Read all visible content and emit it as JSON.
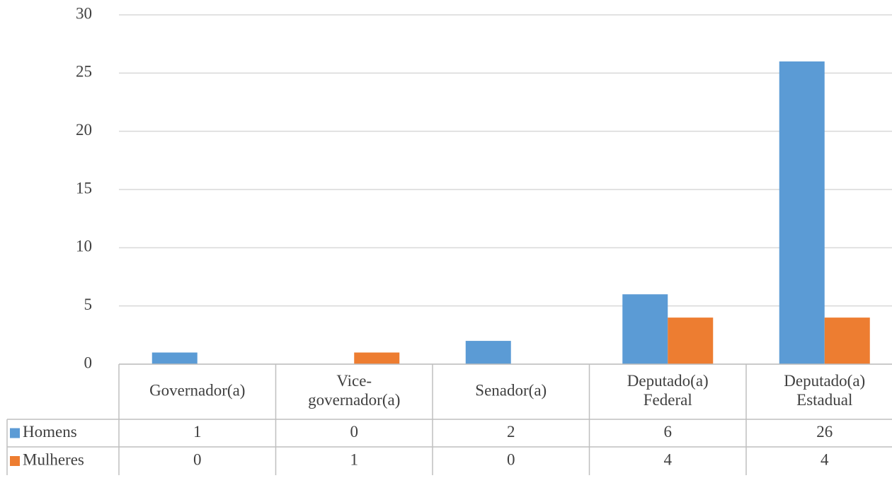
{
  "chart_data": {
    "type": "bar",
    "categories": [
      "Governador(a)",
      "Vice-governador(a)",
      "Senador(a)",
      "Deputado(a) Federal",
      "Deputado(a) Estadual"
    ],
    "series": [
      {
        "name": "Homens",
        "color": "#5b9bd5",
        "values": [
          1,
          0,
          2,
          6,
          26
        ]
      },
      {
        "name": "Mulheres",
        "color": "#ed7d31",
        "values": [
          0,
          1,
          0,
          4,
          4
        ]
      }
    ],
    "ylim": [
      0,
      30
    ],
    "yticks": [
      0,
      5,
      10,
      15,
      20,
      25,
      30
    ],
    "grid": true,
    "data_table": true
  }
}
